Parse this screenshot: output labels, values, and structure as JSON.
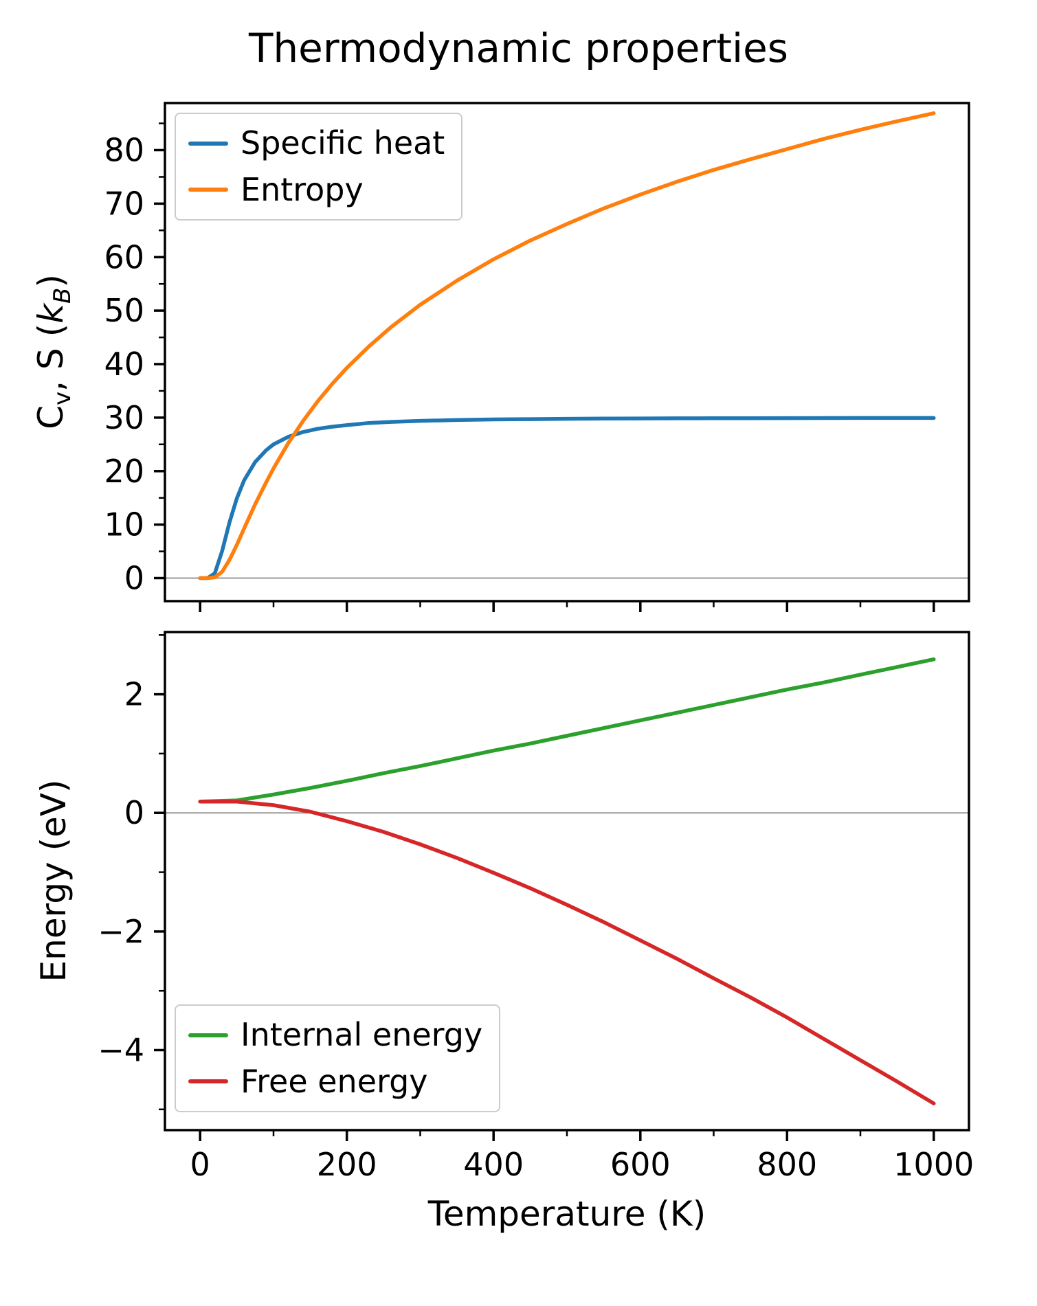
{
  "figure": {
    "title": "Thermodynamic properties",
    "xlabel": "Temperature (K)",
    "background": "#ffffff",
    "spine_color": "#000000",
    "zero_line_color": "#9a9a9a"
  },
  "ylabel_top": {
    "c": "C",
    "v": "v",
    "mid": ", S (",
    "k": "k",
    "b": "B",
    "close": ")"
  },
  "ylabel_bottom": "Energy (eV)",
  "chart_data": [
    {
      "type": "line",
      "ylabel": "Cv, S (kB)",
      "xlabel": "Temperature (K)",
      "xlim": [
        -48,
        1048
      ],
      "ylim": [
        -4.3,
        88.8
      ],
      "xticks": [
        0,
        200,
        400,
        600,
        800,
        1000
      ],
      "xticks_minor": [
        100,
        300,
        500,
        700,
        900
      ],
      "yticks": [
        0,
        10,
        20,
        30,
        40,
        50,
        60,
        70,
        80
      ],
      "yticks_minor": [
        5,
        15,
        25,
        35,
        45,
        55,
        65,
        75,
        85
      ],
      "grid": false,
      "zero_line": true,
      "legend_position": "upper-left",
      "x": [
        0,
        10,
        20,
        30,
        40,
        50,
        60,
        75,
        90,
        100,
        120,
        140,
        160,
        180,
        200,
        230,
        260,
        300,
        350,
        400,
        450,
        500,
        550,
        600,
        650,
        700,
        750,
        800,
        850,
        900,
        950,
        1000
      ],
      "series": [
        {
          "name": "Specific heat",
          "color": "#1f77b4",
          "values": [
            0,
            0,
            0.9,
            5.1,
            10.4,
            14.9,
            18.3,
            21.7,
            23.9,
            25.0,
            26.4,
            27.3,
            27.9,
            28.3,
            28.6,
            29.0,
            29.2,
            29.4,
            29.55,
            29.66,
            29.72,
            29.78,
            29.82,
            29.85,
            29.87,
            29.89,
            29.9,
            29.91,
            29.92,
            29.93,
            29.94,
            29.94
          ]
        },
        {
          "name": "Entropy",
          "color": "#ff7f0e",
          "values": [
            0,
            0,
            0.14,
            1.2,
            3.4,
            6.2,
            9.3,
            13.8,
            17.9,
            20.5,
            25.2,
            29.3,
            33.0,
            36.3,
            39.3,
            43.3,
            46.9,
            51.1,
            55.6,
            59.6,
            63.1,
            66.2,
            69.1,
            71.7,
            74.1,
            76.3,
            78.3,
            80.2,
            82.1,
            83.8,
            85.4,
            86.9
          ]
        }
      ]
    },
    {
      "type": "line",
      "ylabel": "Energy (eV)",
      "xlabel": "Temperature (K)",
      "xlim": [
        -48,
        1048
      ],
      "ylim": [
        -5.35,
        3.05
      ],
      "xticks": [
        0,
        200,
        400,
        600,
        800,
        1000
      ],
      "xticks_minor": [
        100,
        300,
        500,
        700,
        900
      ],
      "yticks": [
        -4,
        -2,
        0,
        2
      ],
      "yticks_minor": [
        -5,
        -3,
        -1,
        1,
        3
      ],
      "grid": false,
      "zero_line": true,
      "legend_position": "lower-left",
      "x": [
        0,
        50,
        100,
        150,
        200,
        250,
        300,
        350,
        400,
        450,
        500,
        550,
        600,
        650,
        700,
        750,
        800,
        850,
        900,
        950,
        1000
      ],
      "series": [
        {
          "name": "Internal energy",
          "color": "#2ca02c",
          "values": [
            0.19,
            0.21,
            0.31,
            0.42,
            0.54,
            0.67,
            0.79,
            0.92,
            1.05,
            1.17,
            1.3,
            1.43,
            1.56,
            1.69,
            1.82,
            1.95,
            2.08,
            2.2,
            2.33,
            2.46,
            2.59
          ]
        },
        {
          "name": "Free energy",
          "color": "#d62728",
          "values": [
            0.19,
            0.19,
            0.13,
            0.02,
            -0.14,
            -0.32,
            -0.53,
            -0.76,
            -1.01,
            -1.27,
            -1.55,
            -1.84,
            -2.15,
            -2.46,
            -2.79,
            -3.11,
            -3.45,
            -3.81,
            -4.17,
            -4.53,
            -4.9
          ]
        }
      ]
    }
  ]
}
